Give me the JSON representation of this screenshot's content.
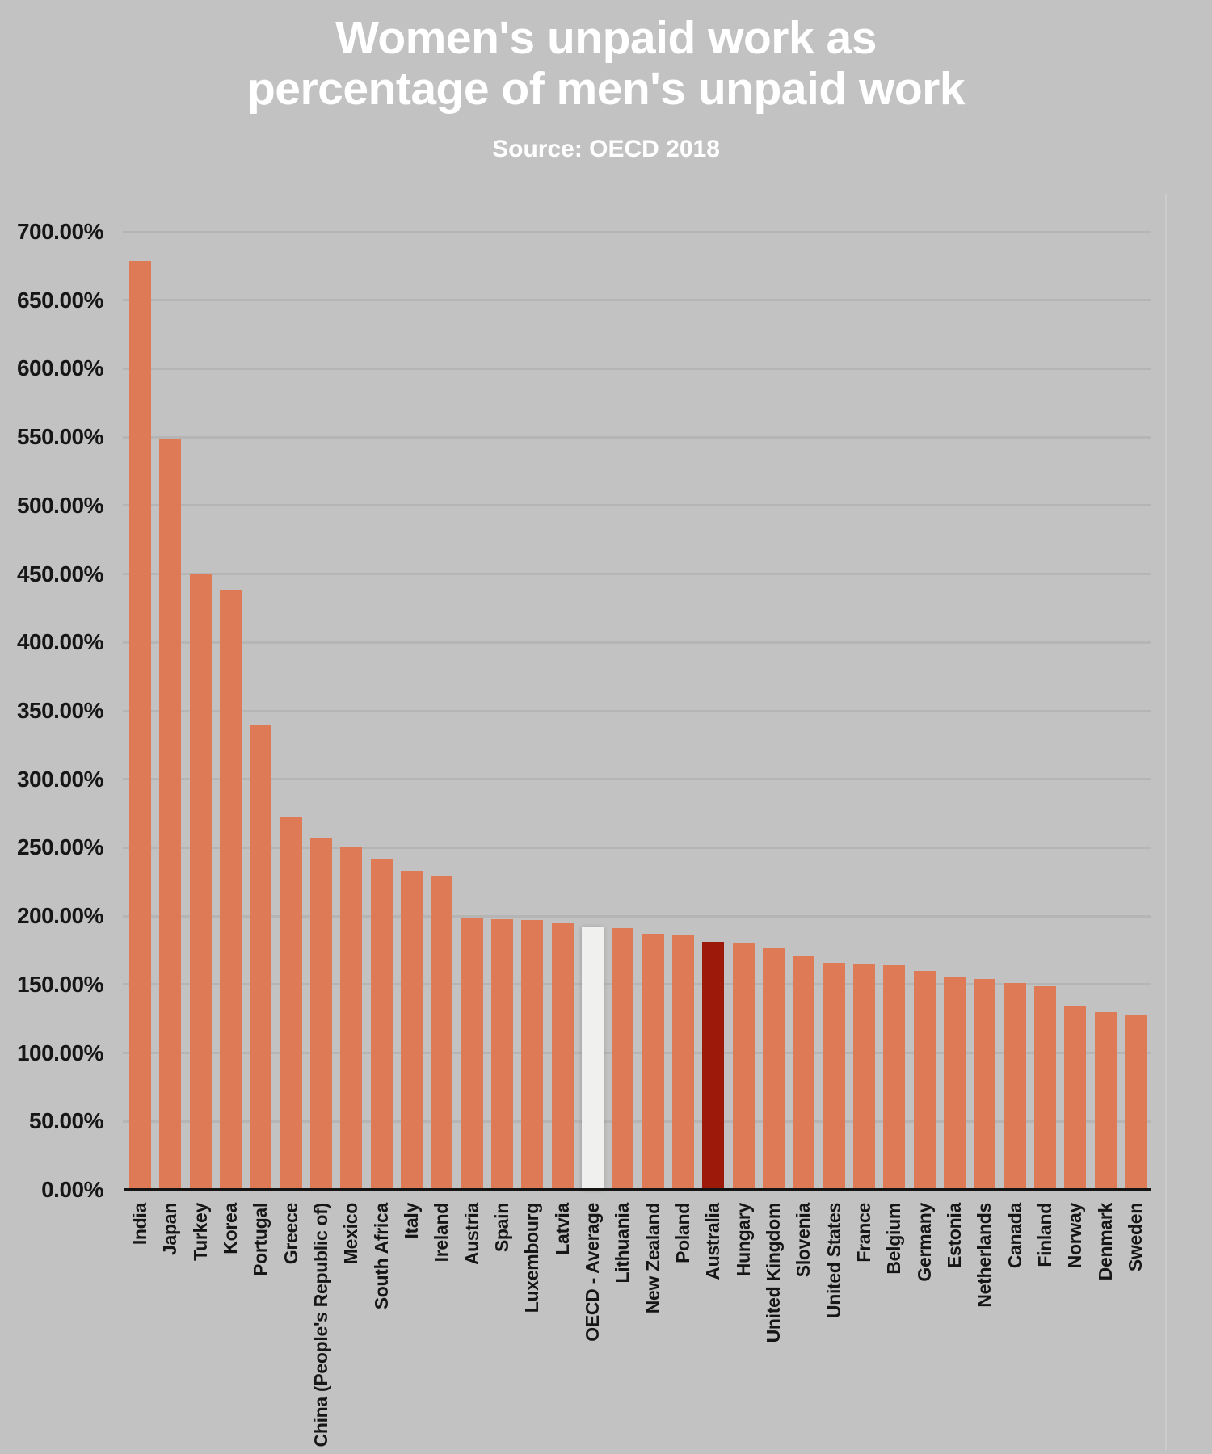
{
  "page": {
    "background_color": "#c2c2c2"
  },
  "chart_data": {
    "type": "bar",
    "title": "Women's unpaid work as percentage of men's unpaid work",
    "title_lines": [
      "Women's unpaid work as",
      "percentage of men's unpaid work"
    ],
    "subtitle": "Source: OECD 2018",
    "xlabel": "",
    "ylabel": "",
    "unit": "percent",
    "ylim": [
      0,
      700
    ],
    "grid": true,
    "legend": "none",
    "y_ticks": [
      0,
      50,
      100,
      150,
      200,
      250,
      300,
      350,
      400,
      450,
      500,
      550,
      600,
      650,
      700
    ],
    "y_tick_labels": [
      "0.00%",
      "50.00%",
      "100.00%",
      "150.00%",
      "200.00%",
      "250.00%",
      "300.00%",
      "350.00%",
      "400.00%",
      "450.00%",
      "500.00%",
      "550.00%",
      "600.00%",
      "650.00%",
      "700.00%"
    ],
    "categories": [
      "India",
      "Japan",
      "Turkey",
      "Korea",
      "Portugal",
      "Greece",
      "China (People's Republic of)",
      "Mexico",
      "South Africa",
      "Italy",
      "Ireland",
      "Austria",
      "Spain",
      "Luxembourg",
      "Latvia",
      "OECD - Average",
      "Lithuania",
      "New Zealand",
      "Poland",
      "Australia",
      "Hungary",
      "United Kingdom",
      "Slovenia",
      "United States",
      "France",
      "Belgium",
      "Germany",
      "Estonia",
      "Netherlands",
      "Canada",
      "Finland",
      "Norway",
      "Denmark",
      "Sweden"
    ],
    "values": [
      679,
      549,
      450,
      438,
      340,
      272,
      257,
      251,
      242,
      233,
      229,
      199,
      198,
      197,
      195,
      192,
      191,
      187,
      186,
      181,
      180,
      177,
      171,
      166,
      165,
      164,
      160,
      155,
      154,
      151,
      149,
      134,
      130,
      128
    ],
    "colors": {
      "default_bar": "#df7a57",
      "highlight_bars": {
        "OECD - Average": "#f0f0ee",
        "Australia": "#9d1a0b"
      },
      "title_text": "#ffffff",
      "axis_text": "#161616",
      "gridline": "#b5b5b5",
      "axis_line": "#141414",
      "background": "#c2c2c2"
    }
  }
}
